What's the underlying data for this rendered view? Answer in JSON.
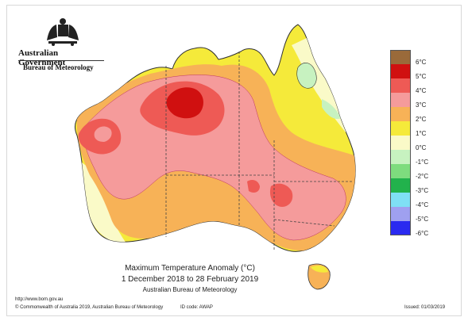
{
  "header": {
    "government": "Australian Government",
    "bureau": "Bureau of Meteorology"
  },
  "legend": {
    "items": [
      {
        "label": "6°C",
        "color": "#9a6a3a"
      },
      {
        "label": "5°C",
        "color": "#d01010"
      },
      {
        "label": "4°C",
        "color": "#ee5a55"
      },
      {
        "label": "3°C",
        "color": "#f59b9b"
      },
      {
        "label": "2°C",
        "color": "#f7b257"
      },
      {
        "label": "1°C",
        "color": "#f5ea3a"
      },
      {
        "label": "0°C",
        "color": "#fafac8"
      },
      {
        "label": "-1°C",
        "color": "#c7f2c0"
      },
      {
        "label": "-2°C",
        "color": "#7edc7e"
      },
      {
        "label": "-3°C",
        "color": "#22b24c"
      },
      {
        "label": "-4°C",
        "color": "#7fe0f5"
      },
      {
        "label": "-5°C",
        "color": "#9fa0f0"
      },
      {
        "label": "-6°C",
        "color": "#2a2af0"
      }
    ]
  },
  "caption": {
    "title": "Maximum Temperature Anomaly (°C)",
    "period": "1 December 2018 to 28 February 2019",
    "source": "Australian Bureau of Meteorology"
  },
  "footer": {
    "url": "http://www.bom.gov.au",
    "copyright": "© Commonwealth of Australia 2019, Australian Bureau of Meteorology",
    "id_code": "ID code: AWAP",
    "issued": "Issued: 01/03/2019"
  }
}
